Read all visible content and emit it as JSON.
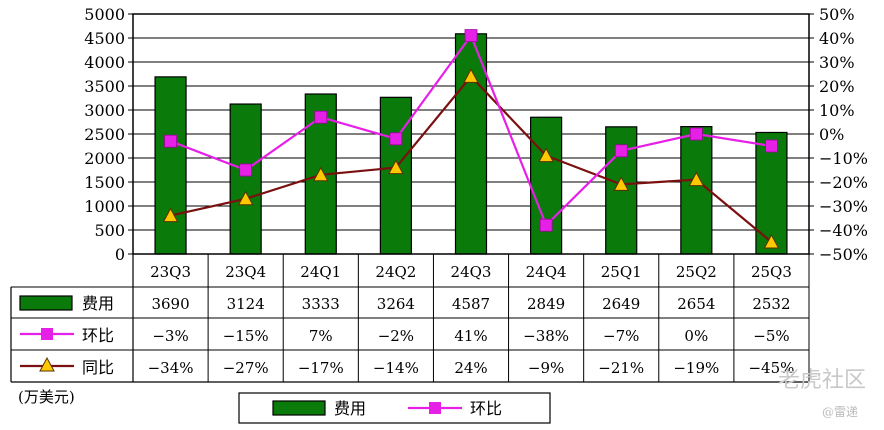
{
  "chart_data": {
    "type": "bar",
    "categories": [
      "23Q3",
      "23Q4",
      "24Q1",
      "24Q2",
      "24Q3",
      "24Q4",
      "25Q1",
      "25Q2",
      "25Q3"
    ],
    "series": [
      {
        "name": "费用",
        "type": "bar",
        "axis": "left",
        "color": "#0a7a0a",
        "values": [
          3690,
          3124,
          3333,
          3264,
          4587,
          2849,
          2649,
          2654,
          2532
        ]
      },
      {
        "name": "环比",
        "type": "line",
        "axis": "right",
        "color": "#e620e6",
        "marker": "square",
        "values": [
          -3,
          -15,
          7,
          -2,
          41,
          -38,
          -7,
          0,
          -5
        ],
        "labels": [
          "-3%",
          "-15%",
          "7%",
          "-2%",
          "41%",
          "-38%",
          "-7%",
          "0%",
          "-5%"
        ]
      },
      {
        "name": "同比",
        "type": "line",
        "axis": "right",
        "color": "#7a1010",
        "marker": "triangle",
        "marker_fill": "#ffc800",
        "values": [
          -34,
          -27,
          -17,
          -14,
          24,
          -9,
          -21,
          -19,
          -45
        ],
        "labels": [
          "-34%",
          "-27%",
          "-17%",
          "-14%",
          "24%",
          "-9%",
          "-21%",
          "-19%",
          "-45%"
        ]
      }
    ],
    "ylim": [
      0,
      5000
    ],
    "y_ticks": [
      "0",
      "500",
      "1000",
      "1500",
      "2000",
      "2500",
      "3000",
      "3500",
      "4000",
      "4500",
      "5000"
    ],
    "y2lim": [
      -50,
      50
    ],
    "y2_ticks": [
      "-50%",
      "-40%",
      "-30%",
      "-20%",
      "-10%",
      "0%",
      "10%",
      "20%",
      "30%",
      "40%",
      "50%"
    ],
    "unit_label": "(万美元)",
    "grid": true,
    "legend": {
      "placement": "bottom-center",
      "entries": [
        "费用",
        "环比"
      ]
    }
  },
  "watermark": {
    "text": "老虎社区",
    "sub": "@雷递"
  }
}
